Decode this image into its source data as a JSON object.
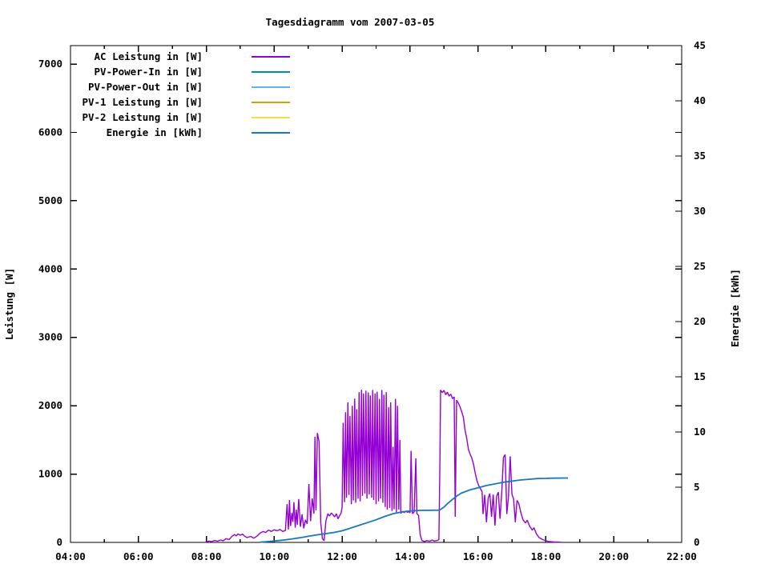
{
  "page": {
    "background": "#ffffff"
  },
  "chart_data": {
    "type": "line",
    "title": "Tagesdiagramm vom 2007-03-05",
    "grid": false,
    "legend_position": "top-left-inside",
    "x_axis": {
      "unit": "time-of-day",
      "range_hours": [
        4,
        22
      ],
      "major_tick_hours": [
        4,
        6,
        8,
        10,
        12,
        14,
        16,
        18,
        20,
        22
      ],
      "minor_tick_hours": [
        5,
        7,
        9,
        11,
        13,
        15,
        17,
        19,
        21
      ],
      "tick_labels": [
        "04:00",
        "06:00",
        "08:00",
        "10:00",
        "12:00",
        "14:00",
        "16:00",
        "18:00",
        "20:00",
        "22:00"
      ]
    },
    "y_left": {
      "label": "Leistung [W]",
      "range": [
        0,
        7270
      ],
      "ticks": [
        0,
        1000,
        2000,
        3000,
        4000,
        5000,
        6000,
        7000
      ]
    },
    "y_right": {
      "label": "Energie [kWh]",
      "range": [
        0,
        45
      ],
      "ticks": [
        0,
        5,
        10,
        15,
        20,
        25,
        30,
        35,
        40,
        45
      ]
    },
    "series": [
      {
        "name": "AC Leistung in [W]",
        "color": "#9400d3",
        "axis": "left",
        "points": [
          [
            7.95,
            0
          ],
          [
            8.0,
            8
          ],
          [
            8.08,
            20
          ],
          [
            8.15,
            12
          ],
          [
            8.25,
            28
          ],
          [
            8.33,
            18
          ],
          [
            8.42,
            35
          ],
          [
            8.5,
            25
          ],
          [
            8.58,
            55
          ],
          [
            8.67,
            40
          ],
          [
            8.75,
            85
          ],
          [
            8.83,
            115
          ],
          [
            8.88,
            95
          ],
          [
            8.93,
            125
          ],
          [
            9.0,
            105
          ],
          [
            9.07,
            120
          ],
          [
            9.13,
            90
          ],
          [
            9.2,
            70
          ],
          [
            9.3,
            88
          ],
          [
            9.4,
            62
          ],
          [
            9.5,
            95
          ],
          [
            9.58,
            135
          ],
          [
            9.67,
            160
          ],
          [
            9.75,
            145
          ],
          [
            9.83,
            180
          ],
          [
            9.92,
            160
          ],
          [
            10.0,
            185
          ],
          [
            10.08,
            170
          ],
          [
            10.17,
            190
          ],
          [
            10.25,
            160
          ],
          [
            10.33,
            175
          ],
          [
            10.38,
            560
          ],
          [
            10.42,
            190
          ],
          [
            10.45,
            620
          ],
          [
            10.48,
            240
          ],
          [
            10.52,
            430
          ],
          [
            10.55,
            300
          ],
          [
            10.58,
            590
          ],
          [
            10.62,
            215
          ],
          [
            10.65,
            480
          ],
          [
            10.68,
            260
          ],
          [
            10.72,
            635
          ],
          [
            10.77,
            230
          ],
          [
            10.82,
            410
          ],
          [
            10.87,
            205
          ],
          [
            10.92,
            330
          ],
          [
            10.97,
            270
          ],
          [
            11.02,
            855
          ],
          [
            11.07,
            310
          ],
          [
            11.12,
            645
          ],
          [
            11.17,
            420
          ],
          [
            11.2,
            1545
          ],
          [
            11.23,
            470
          ],
          [
            11.27,
            1600
          ],
          [
            11.32,
            1480
          ],
          [
            11.37,
            290
          ],
          [
            11.42,
            55
          ],
          [
            11.47,
            25
          ],
          [
            11.52,
            310
          ],
          [
            11.58,
            420
          ],
          [
            11.63,
            385
          ],
          [
            11.68,
            430
          ],
          [
            11.73,
            405
          ],
          [
            11.78,
            375
          ],
          [
            11.83,
            420
          ],
          [
            11.88,
            345
          ],
          [
            11.93,
            395
          ],
          [
            11.97,
            430
          ],
          [
            12.0,
            520
          ],
          [
            12.03,
            1750
          ],
          [
            12.07,
            590
          ],
          [
            12.1,
            1905
          ],
          [
            12.13,
            655
          ],
          [
            12.17,
            2050
          ],
          [
            12.2,
            695
          ],
          [
            12.23,
            1850
          ],
          [
            12.27,
            560
          ],
          [
            12.3,
            2000
          ],
          [
            12.33,
            615
          ],
          [
            12.37,
            2105
          ],
          [
            12.4,
            580
          ],
          [
            12.43,
            1950
          ],
          [
            12.47,
            640
          ],
          [
            12.5,
            2200
          ],
          [
            12.53,
            600
          ],
          [
            12.57,
            2235
          ],
          [
            12.6,
            680
          ],
          [
            12.63,
            2180
          ],
          [
            12.67,
            715
          ],
          [
            12.7,
            2220
          ],
          [
            12.73,
            640
          ],
          [
            12.77,
            2195
          ],
          [
            12.8,
            700
          ],
          [
            12.83,
            2150
          ],
          [
            12.87,
            655
          ],
          [
            12.9,
            2230
          ],
          [
            12.93,
            620
          ],
          [
            12.97,
            2180
          ],
          [
            13.0,
            560
          ],
          [
            13.03,
            2205
          ],
          [
            13.07,
            600
          ],
          [
            13.1,
            2100
          ],
          [
            13.13,
            640
          ],
          [
            13.17,
            2230
          ],
          [
            13.2,
            580
          ],
          [
            13.23,
            2160
          ],
          [
            13.27,
            520
          ],
          [
            13.3,
            2200
          ],
          [
            13.33,
            480
          ],
          [
            13.37,
            1980
          ],
          [
            13.4,
            505
          ],
          [
            13.43,
            2050
          ],
          [
            13.47,
            460
          ],
          [
            13.5,
            1400
          ],
          [
            13.53,
            485
          ],
          [
            13.57,
            2100
          ],
          [
            13.6,
            440
          ],
          [
            13.63,
            2000
          ],
          [
            13.67,
            480
          ],
          [
            13.7,
            1500
          ],
          [
            13.73,
            425
          ],
          [
            13.78,
            455
          ],
          [
            13.83,
            435
          ],
          [
            13.88,
            460
          ],
          [
            13.93,
            440
          ],
          [
            13.97,
            455
          ],
          [
            14.0,
            430
          ],
          [
            14.03,
            1340
          ],
          [
            14.07,
            420
          ],
          [
            14.12,
            445
          ],
          [
            14.17,
            1230
          ],
          [
            14.2,
            420
          ],
          [
            14.25,
            395
          ],
          [
            14.3,
            110
          ],
          [
            14.35,
            28
          ],
          [
            14.42,
            14
          ],
          [
            14.5,
            26
          ],
          [
            14.58,
            18
          ],
          [
            14.65,
            34
          ],
          [
            14.72,
            20
          ],
          [
            14.8,
            28
          ],
          [
            14.85,
            40
          ],
          [
            14.88,
            1200
          ],
          [
            14.9,
            2230
          ],
          [
            14.95,
            2190
          ],
          [
            15.0,
            2225
          ],
          [
            15.05,
            2160
          ],
          [
            15.1,
            2200
          ],
          [
            15.15,
            2140
          ],
          [
            15.2,
            2170
          ],
          [
            15.25,
            2105
          ],
          [
            15.3,
            2130
          ],
          [
            15.33,
            375
          ],
          [
            15.37,
            2080
          ],
          [
            15.42,
            2040
          ],
          [
            15.47,
            1985
          ],
          [
            15.52,
            1915
          ],
          [
            15.57,
            1835
          ],
          [
            15.62,
            1640
          ],
          [
            15.67,
            1520
          ],
          [
            15.72,
            1360
          ],
          [
            15.77,
            1290
          ],
          [
            15.82,
            1235
          ],
          [
            15.87,
            1140
          ],
          [
            15.92,
            1010
          ],
          [
            15.97,
            905
          ],
          [
            16.02,
            835
          ],
          [
            16.07,
            790
          ],
          [
            16.12,
            745
          ],
          [
            16.15,
            415
          ],
          [
            16.2,
            695
          ],
          [
            16.25,
            295
          ],
          [
            16.3,
            645
          ],
          [
            16.35,
            715
          ],
          [
            16.4,
            375
          ],
          [
            16.45,
            700
          ],
          [
            16.5,
            245
          ],
          [
            16.55,
            675
          ],
          [
            16.6,
            735
          ],
          [
            16.65,
            345
          ],
          [
            16.7,
            715
          ],
          [
            16.75,
            1245
          ],
          [
            16.8,
            1285
          ],
          [
            16.85,
            415
          ],
          [
            16.9,
            675
          ],
          [
            16.95,
            1260
          ],
          [
            17.0,
            705
          ],
          [
            17.05,
            635
          ],
          [
            17.1,
            295
          ],
          [
            17.15,
            615
          ],
          [
            17.2,
            575
          ],
          [
            17.28,
            405
          ],
          [
            17.33,
            330
          ],
          [
            17.4,
            285
          ],
          [
            17.45,
            325
          ],
          [
            17.52,
            240
          ],
          [
            17.6,
            180
          ],
          [
            17.65,
            215
          ],
          [
            17.72,
            125
          ],
          [
            17.8,
            70
          ],
          [
            17.9,
            42
          ],
          [
            18.0,
            22
          ],
          [
            18.1,
            12
          ],
          [
            18.25,
            6
          ],
          [
            18.45,
            3
          ]
        ]
      },
      {
        "name": "PV-Power-In in [W]",
        "color": "#009292",
        "axis": "left",
        "points": []
      },
      {
        "name": "PV-Power-Out in [W]",
        "color": "#5fb4e8",
        "axis": "left",
        "points": []
      },
      {
        "name": "PV-1 Leistung in [W]",
        "color": "#dd9e00",
        "axis": "left",
        "points": []
      },
      {
        "name": "PV-2 Leistung in [W]",
        "color": "#ece247",
        "axis": "left",
        "points": []
      },
      {
        "name": "Energie in [kWh]",
        "color": "#1878be",
        "axis": "right",
        "points": [
          [
            9.58,
            0.02
          ],
          [
            9.75,
            0.06
          ],
          [
            10.0,
            0.12
          ],
          [
            10.25,
            0.2
          ],
          [
            10.5,
            0.3
          ],
          [
            10.75,
            0.42
          ],
          [
            11.0,
            0.55
          ],
          [
            11.25,
            0.68
          ],
          [
            11.5,
            0.78
          ],
          [
            11.75,
            0.9
          ],
          [
            12.0,
            1.05
          ],
          [
            12.25,
            1.3
          ],
          [
            12.5,
            1.55
          ],
          [
            12.75,
            1.8
          ],
          [
            13.0,
            2.05
          ],
          [
            13.25,
            2.35
          ],
          [
            13.5,
            2.6
          ],
          [
            13.75,
            2.75
          ],
          [
            14.0,
            2.85
          ],
          [
            14.3,
            2.9
          ],
          [
            14.87,
            2.92
          ],
          [
            15.0,
            3.2
          ],
          [
            15.1,
            3.5
          ],
          [
            15.25,
            3.9
          ],
          [
            15.4,
            4.25
          ],
          [
            15.5,
            4.45
          ],
          [
            15.75,
            4.75
          ],
          [
            16.0,
            4.95
          ],
          [
            16.25,
            5.15
          ],
          [
            16.5,
            5.3
          ],
          [
            16.75,
            5.45
          ],
          [
            17.0,
            5.55
          ],
          [
            17.25,
            5.65
          ],
          [
            17.5,
            5.72
          ],
          [
            17.75,
            5.78
          ],
          [
            18.0,
            5.8
          ],
          [
            18.2,
            5.82
          ],
          [
            18.65,
            5.83
          ]
        ]
      }
    ]
  }
}
